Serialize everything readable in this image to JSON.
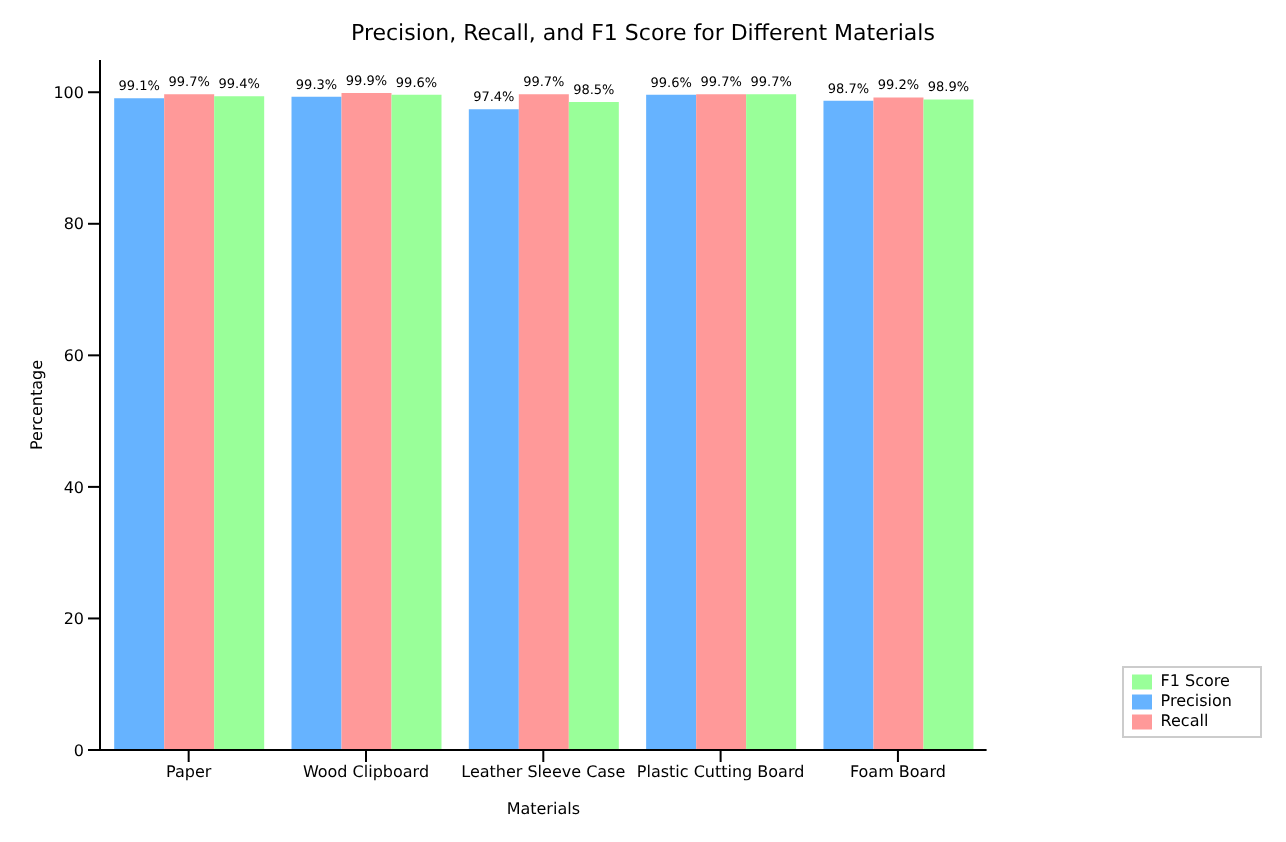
{
  "chart_data": {
    "type": "bar",
    "title": "Precision, Recall, and F1 Score for Different Materials",
    "xlabel": "Materials",
    "ylabel": "Percentage",
    "categories": [
      "Paper",
      "Wood Clipboard",
      "Leather Sleeve Case",
      "Plastic Cutting Board",
      "Foam Board"
    ],
    "series": [
      {
        "name": "Precision",
        "color": "#66b3ff",
        "values": [
          99.1,
          99.3,
          97.4,
          99.6,
          98.7
        ],
        "value_labels": [
          "99.1%",
          "99.3%",
          "97.4%",
          "99.6%",
          "98.7%"
        ]
      },
      {
        "name": "Recall",
        "color": "#ff9999",
        "values": [
          99.7,
          99.9,
          99.7,
          99.7,
          99.2
        ],
        "value_labels": [
          "99.7%",
          "99.9%",
          "99.7%",
          "99.7%",
          "99.2%"
        ]
      },
      {
        "name": "F1 Score",
        "color": "#99ff99",
        "values": [
          99.4,
          99.6,
          98.5,
          99.7,
          98.9
        ],
        "value_labels": [
          "99.4%",
          "99.6%",
          "98.5%",
          "99.7%",
          "98.9%"
        ]
      }
    ],
    "ylim": [
      0,
      104.9
    ],
    "yticks": [
      0,
      20,
      40,
      60,
      80,
      100
    ],
    "grid": false,
    "legend": "bottom right"
  }
}
